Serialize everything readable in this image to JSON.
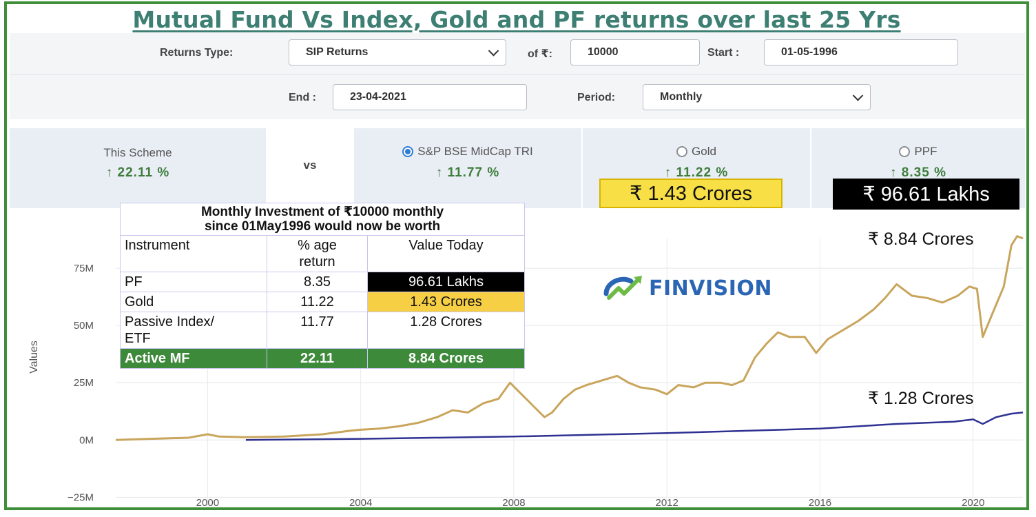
{
  "title": "Mutual Fund Vs Index, Gold and PF returns over last 25 Yrs",
  "controls": {
    "returns_type_label": "Returns Type:",
    "returns_type_value": "SIP Returns",
    "of_label": "of ₹:",
    "amount_value": "10000",
    "start_label": "Start :",
    "start_value": "01-05-1996",
    "end_label": "End :",
    "end_value": "23-04-2021",
    "period_label": "Period:",
    "period_value": "Monthly"
  },
  "comparison": {
    "scheme_label": "This Scheme",
    "scheme_pct": "↑ 22.11 %",
    "vs_label": "vs",
    "options": [
      {
        "label": "S&P BSE MidCap TRI",
        "pct": "↑ 11.77 %",
        "selected": true
      },
      {
        "label": "Gold",
        "pct": "↑ 11.22 %",
        "selected": false
      },
      {
        "label": "PPF",
        "pct": "↑ 8.35 %",
        "selected": false
      }
    ],
    "gold_tag": "₹ 1.43 Crores",
    "ppf_tag": "₹ 96.61 Lakhs"
  },
  "summary_table": {
    "heading_line1": "Monthly Investment of ₹10000 monthly",
    "heading_line2": "since 01May1996 would now be worth",
    "headers": {
      "instrument": "Instrument",
      "return_line1": "% age",
      "return_line2": "return",
      "value": "Value Today"
    },
    "rows": [
      {
        "instrument": "PF",
        "return": "8.35",
        "value": "96.61 Lakhs"
      },
      {
        "instrument": "Gold",
        "return": "11.22",
        "value": "1.43 Crores"
      },
      {
        "instrument_line1": "Passive Index/",
        "instrument_line2": "ETF",
        "return": "11.77",
        "value": "1.28 Crores"
      },
      {
        "instrument": "Active MF",
        "return": "22.11",
        "value": "8.84 Crores"
      }
    ]
  },
  "logo_text": "FINVISION",
  "annotations": {
    "scheme_end": "₹ 8.84 Crores",
    "index_end": "₹ 1.28 Crores"
  },
  "colors": {
    "scheme_line": "#c9a55c",
    "index_line": "#2e3192",
    "accent_green": "#3e8a3b",
    "title": "#3d7f73"
  },
  "chart_data": {
    "type": "line",
    "ylabel": "Values",
    "xlim": [
      1997.6,
      2021.3
    ],
    "ylim": [
      -30,
      100
    ],
    "x_ticks": [
      2000,
      2004,
      2008,
      2012,
      2016,
      2020
    ],
    "y_ticks": [
      -25,
      0,
      25,
      50,
      75
    ],
    "y_tick_labels": [
      "−25M",
      "0M",
      "25M",
      "50M",
      "75M"
    ],
    "grid": true,
    "series": [
      {
        "unit": "M",
        "x": [
          1997.6,
          1998.5,
          1999.5,
          2000.0,
          2000.3,
          2001.0,
          2002.0,
          2003.0,
          2003.7,
          2004.0,
          2004.5,
          2005.0,
          2005.5,
          2006.0,
          2006.4,
          2006.8,
          2007.2,
          2007.6,
          2007.9,
          2008.2,
          2008.5,
          2008.8,
          2009.0,
          2009.3,
          2009.6,
          2009.9,
          2010.3,
          2010.7,
          2011.0,
          2011.3,
          2011.7,
          2012.0,
          2012.3,
          2012.7,
          2013.0,
          2013.4,
          2013.7,
          2014.0,
          2014.3,
          2014.6,
          2014.9,
          2015.2,
          2015.6,
          2015.9,
          2016.2,
          2016.6,
          2017.0,
          2017.4,
          2017.7,
          2018.0,
          2018.4,
          2018.8,
          2019.2,
          2019.6,
          2019.9,
          2020.1,
          2020.25,
          2020.5,
          2020.8,
          2021.0,
          2021.15,
          2021.3
        ],
        "y": [
          0,
          0.5,
          1,
          2.5,
          1.5,
          1.2,
          1.5,
          2.5,
          4,
          4.5,
          5,
          6,
          7.5,
          10,
          13,
          12,
          16,
          18,
          25,
          20,
          15,
          10,
          12,
          18,
          22,
          24,
          26,
          28,
          25,
          23,
          22,
          20,
          24,
          23,
          25,
          25,
          24,
          26,
          36,
          42,
          47,
          45,
          45,
          38,
          44,
          48,
          52,
          57,
          62,
          68,
          63,
          62,
          60,
          63,
          67,
          66,
          45,
          55,
          67,
          85,
          89,
          88
        ]
      },
      {
        "unit": "M",
        "x": [
          2001.0,
          2004.0,
          2008.0,
          2012.0,
          2016.0,
          2018.0,
          2019.5,
          2020.0,
          2020.25,
          2020.6,
          2021.0,
          2021.3
        ],
        "y": [
          0,
          0.5,
          1.5,
          3,
          5,
          7,
          8,
          9,
          7,
          10,
          11.5,
          12
        ]
      }
    ]
  }
}
